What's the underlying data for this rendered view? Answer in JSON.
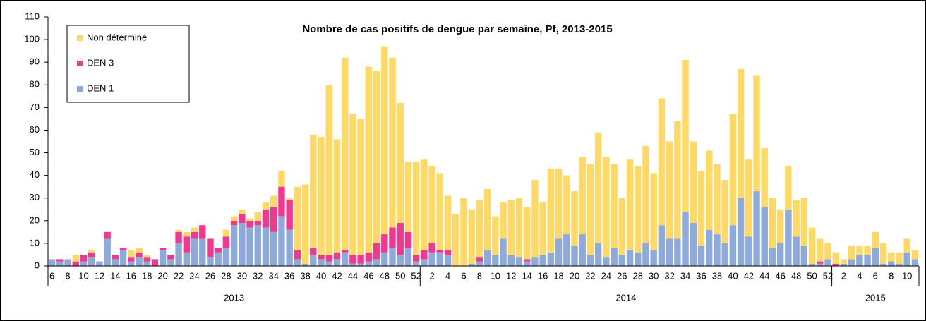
{
  "chart_data": {
    "type": "stacked-bar",
    "title": "Nombre de cas positifs de dengue par semaine, Pf,  2013-2015",
    "categories": [
      "6",
      null,
      "8",
      null,
      "10",
      null,
      "12",
      null,
      "14",
      null,
      "16",
      null,
      "18",
      null,
      "20",
      null,
      "22",
      null,
      "24",
      null,
      "26",
      null,
      "28",
      null,
      "30",
      null,
      "32",
      null,
      "34",
      null,
      "36",
      null,
      "38",
      null,
      "40",
      null,
      "42",
      null,
      "44",
      null,
      "46",
      null,
      "48",
      null,
      "50",
      null,
      "52",
      null,
      "2",
      null,
      "4",
      null,
      "6",
      null,
      "8",
      null,
      "10",
      null,
      "12",
      null,
      "14",
      null,
      "16",
      null,
      "18",
      null,
      "20",
      null,
      "22",
      null,
      "24",
      null,
      "26",
      null,
      "28",
      null,
      "30",
      null,
      "32",
      null,
      "34",
      null,
      "36",
      null,
      "38",
      null,
      "40",
      null,
      "42",
      null,
      "44",
      null,
      "46",
      null,
      "48",
      null,
      "50",
      null,
      "52",
      null,
      "2",
      null,
      "4",
      null,
      "6",
      null,
      "8",
      null,
      "10",
      null
    ],
    "groups": [
      {
        "label": "2013",
        "count": 47
      },
      {
        "label": "2014",
        "count": 52
      },
      {
        "label": "2015",
        "count": 11
      }
    ],
    "series": [
      {
        "name": "DEN 1",
        "color": "#8eaadb",
        "values": [
          3,
          2,
          3,
          0,
          2,
          4,
          2,
          12,
          3,
          7,
          2,
          4,
          2,
          0,
          7,
          3,
          10,
          6,
          12,
          12,
          4,
          6,
          8,
          18,
          19,
          17,
          18,
          17,
          15,
          22,
          16,
          3,
          1,
          5,
          3,
          2,
          3,
          6,
          1,
          1,
          2,
          3,
          6,
          8,
          5,
          8,
          2,
          3,
          6,
          6,
          5,
          0,
          0,
          1,
          2,
          7,
          5,
          12,
          5,
          4,
          2,
          4,
          5,
          6,
          12,
          14,
          9,
          14,
          5,
          10,
          4,
          8,
          5,
          7,
          6,
          10,
          7,
          18,
          12,
          12,
          24,
          19,
          9,
          16,
          14,
          10,
          18,
          30,
          13,
          33,
          26,
          8,
          10,
          25,
          13,
          9,
          1,
          1,
          3,
          0,
          1,
          3,
          5,
          5,
          8,
          1,
          2,
          1,
          6,
          3
        ]
      },
      {
        "name": "DEN 3",
        "color": "#f0388f",
        "values": [
          0,
          1,
          0,
          2,
          3,
          2,
          0,
          3,
          2,
          1,
          2,
          2,
          2,
          3,
          1,
          2,
          5,
          7,
          3,
          6,
          8,
          2,
          5,
          2,
          4,
          3,
          2,
          8,
          11,
          13,
          13,
          4,
          0,
          3,
          2,
          3,
          3,
          1,
          4,
          4,
          4,
          7,
          8,
          9,
          14,
          7,
          3,
          4,
          4,
          1,
          2,
          0,
          0,
          0,
          2,
          0,
          0,
          0,
          0,
          0,
          1,
          0,
          0,
          0,
          0,
          0,
          0,
          0,
          0,
          0,
          0,
          0,
          0,
          0,
          0,
          0,
          0,
          0,
          0,
          0,
          0,
          0,
          0,
          0,
          0,
          0,
          0,
          0,
          0,
          0,
          0,
          0,
          0,
          0,
          0,
          0,
          0,
          1,
          0,
          1,
          0,
          0,
          0,
          0,
          0,
          0,
          0,
          0,
          0,
          0
        ]
      },
      {
        "name": "Non déterminé",
        "color": "#ffd966",
        "values": [
          0,
          0,
          0,
          3,
          0,
          1,
          0,
          0,
          0,
          0,
          3,
          2,
          1,
          0,
          0,
          0,
          1,
          2,
          2,
          0,
          0,
          0,
          3,
          2,
          2,
          1,
          4,
          3,
          5,
          7,
          1,
          28,
          35,
          50,
          52,
          75,
          50,
          85,
          62,
          60,
          82,
          76,
          83,
          75,
          53,
          31,
          41,
          40,
          34,
          34,
          24,
          23,
          30,
          24,
          25,
          27,
          17,
          16,
          24,
          26,
          23,
          34,
          23,
          37,
          31,
          26,
          24,
          34,
          40,
          49,
          44,
          37,
          25,
          40,
          38,
          43,
          34,
          56,
          43,
          52,
          67,
          36,
          33,
          35,
          31,
          28,
          49,
          57,
          34,
          51,
          26,
          22,
          15,
          19,
          16,
          21,
          16,
          10,
          7,
          5,
          2,
          6,
          4,
          4,
          7,
          9,
          4,
          5,
          6,
          4
        ]
      }
    ],
    "ylim": [
      0,
      110
    ],
    "yticks": [
      0,
      10,
      20,
      30,
      40,
      50,
      60,
      70,
      80,
      90,
      100,
      110
    ],
    "grid": false,
    "legend": "top-left"
  }
}
